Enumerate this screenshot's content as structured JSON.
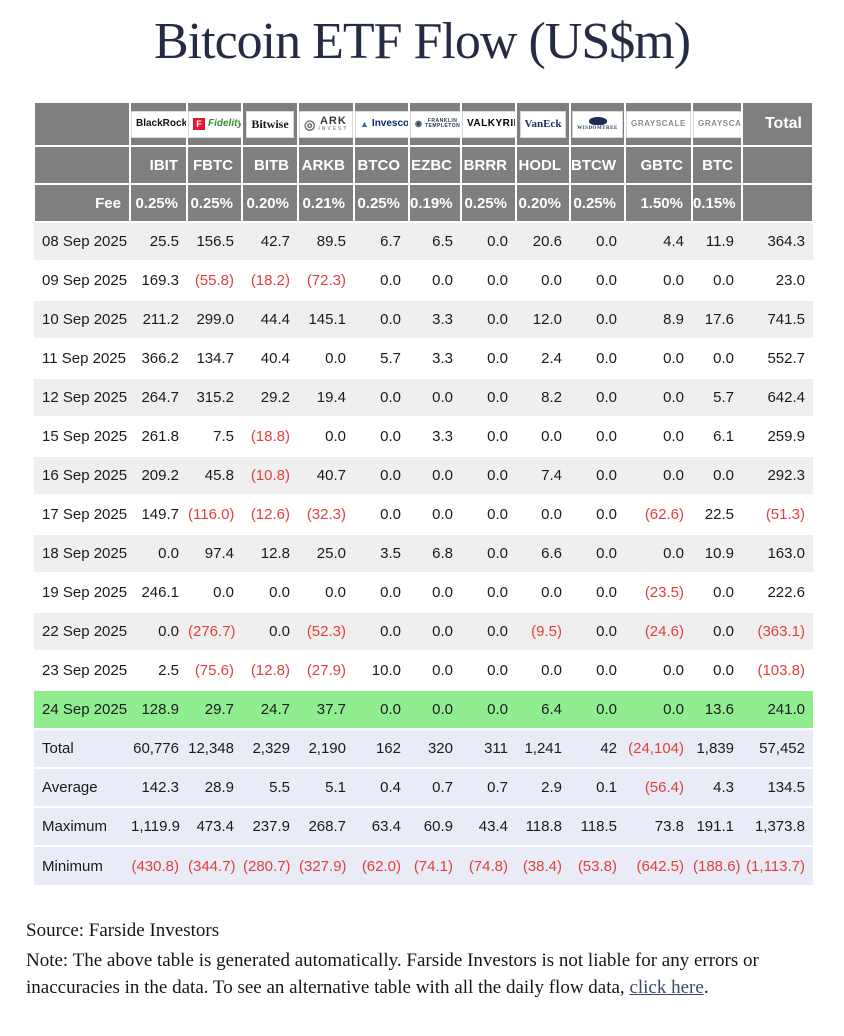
{
  "title": "Bitcoin ETF Flow (US$m)",
  "colors": {
    "header-gray": "#7f7f7f",
    "stripe-gray": "#efefef",
    "summary-lavender": "#e9ebf7",
    "highlight-green": "#90ee90",
    "neg-red": "#e2403b",
    "title-navy": "#262b44"
  },
  "table": {
    "fee_label": "Fee",
    "total_label": "Total",
    "funds": [
      {
        "name": "blackrock",
        "ticker": "IBIT",
        "fee": "0.25%",
        "logo": {
          "lines": [
            "BlackRock"
          ],
          "icon": null,
          "icon_name": null
        }
      },
      {
        "name": "fidelity",
        "ticker": "FBTC",
        "fee": "0.25%",
        "logo": {
          "lines": [
            "Fidelity"
          ],
          "icon": "F",
          "icon_name": "fidelity-f-icon"
        }
      },
      {
        "name": "bitwise",
        "ticker": "BITB",
        "fee": "0.20%",
        "logo": {
          "lines": [
            "Bitwise"
          ],
          "icon": null,
          "icon_name": null
        }
      },
      {
        "name": "ark-invest",
        "ticker": "ARKB",
        "fee": "0.21%",
        "logo": {
          "lines": [
            "ARK",
            "INVEST"
          ],
          "icon": "◎",
          "icon_name": "ark-circle-icon"
        }
      },
      {
        "name": "invesco",
        "ticker": "BTCO",
        "fee": "0.25%",
        "logo": {
          "lines": [
            "Invesco"
          ],
          "icon": "▲",
          "icon_name": "invesco-triangle-icon"
        }
      },
      {
        "name": "franklin-templeton",
        "ticker": "EZBC",
        "fee": "0.19%",
        "logo": {
          "lines": [
            "FRANKLIN",
            "TEMPLETON"
          ],
          "icon": "◉",
          "icon_name": "franklin-templeton-seal-icon"
        }
      },
      {
        "name": "valkyrie",
        "ticker": "BRRR",
        "fee": "0.25%",
        "logo": {
          "lines": [
            "VALKYRIE"
          ],
          "icon": null,
          "icon_name": null
        }
      },
      {
        "name": "vaneck",
        "ticker": "HODL",
        "fee": "0.20%",
        "logo": {
          "lines": [
            "VanEck"
          ],
          "icon": null,
          "icon_name": null
        }
      },
      {
        "name": "wisdomtree",
        "ticker": "BTCW",
        "fee": "0.25%",
        "logo": {
          "lines": [
            "WISDOMTREE"
          ],
          "icon": "",
          "icon_name": "wisdomtree-tree-icon"
        }
      },
      {
        "name": "grayscale-gbtc",
        "ticker": "GBTC",
        "fee": "1.50%",
        "logo": {
          "lines": [
            "GRAYSCALE"
          ],
          "icon": null,
          "icon_name": null
        }
      },
      {
        "name": "grayscale-btc",
        "ticker": "BTC",
        "fee": "0.15%",
        "logo": {
          "lines": [
            "GRAYSCALE"
          ],
          "icon": null,
          "icon_name": null
        }
      }
    ],
    "rows": [
      {
        "date": "08 Sep 2025",
        "values": [
          "25.5",
          "156.5",
          "42.7",
          "89.5",
          "6.7",
          "6.5",
          "0.0",
          "20.6",
          "0.0",
          "4.4",
          "11.9"
        ],
        "total": "364.3",
        "highlight": false
      },
      {
        "date": "09 Sep 2025",
        "values": [
          "169.3",
          "(55.8)",
          "(18.2)",
          "(72.3)",
          "0.0",
          "0.0",
          "0.0",
          "0.0",
          "0.0",
          "0.0",
          "0.0"
        ],
        "total": "23.0",
        "highlight": false
      },
      {
        "date": "10 Sep 2025",
        "values": [
          "211.2",
          "299.0",
          "44.4",
          "145.1",
          "0.0",
          "3.3",
          "0.0",
          "12.0",
          "0.0",
          "8.9",
          "17.6"
        ],
        "total": "741.5",
        "highlight": false
      },
      {
        "date": "11 Sep 2025",
        "values": [
          "366.2",
          "134.7",
          "40.4",
          "0.0",
          "5.7",
          "3.3",
          "0.0",
          "2.4",
          "0.0",
          "0.0",
          "0.0"
        ],
        "total": "552.7",
        "highlight": false
      },
      {
        "date": "12 Sep 2025",
        "values": [
          "264.7",
          "315.2",
          "29.2",
          "19.4",
          "0.0",
          "0.0",
          "0.0",
          "8.2",
          "0.0",
          "0.0",
          "5.7"
        ],
        "total": "642.4",
        "highlight": false
      },
      {
        "date": "15 Sep 2025",
        "values": [
          "261.8",
          "7.5",
          "(18.8)",
          "0.0",
          "0.0",
          "3.3",
          "0.0",
          "0.0",
          "0.0",
          "0.0",
          "6.1"
        ],
        "total": "259.9",
        "highlight": false
      },
      {
        "date": "16 Sep 2025",
        "values": [
          "209.2",
          "45.8",
          "(10.8)",
          "40.7",
          "0.0",
          "0.0",
          "0.0",
          "7.4",
          "0.0",
          "0.0",
          "0.0"
        ],
        "total": "292.3",
        "highlight": false
      },
      {
        "date": "17 Sep 2025",
        "values": [
          "149.7",
          "(116.0)",
          "(12.6)",
          "(32.3)",
          "0.0",
          "0.0",
          "0.0",
          "0.0",
          "0.0",
          "(62.6)",
          "22.5"
        ],
        "total": "(51.3)",
        "highlight": false
      },
      {
        "date": "18 Sep 2025",
        "values": [
          "0.0",
          "97.4",
          "12.8",
          "25.0",
          "3.5",
          "6.8",
          "0.0",
          "6.6",
          "0.0",
          "0.0",
          "10.9"
        ],
        "total": "163.0",
        "highlight": false
      },
      {
        "date": "19 Sep 2025",
        "values": [
          "246.1",
          "0.0",
          "0.0",
          "0.0",
          "0.0",
          "0.0",
          "0.0",
          "0.0",
          "0.0",
          "(23.5)",
          "0.0"
        ],
        "total": "222.6",
        "highlight": false
      },
      {
        "date": "22 Sep 2025",
        "values": [
          "0.0",
          "(276.7)",
          "0.0",
          "(52.3)",
          "0.0",
          "0.0",
          "0.0",
          "(9.5)",
          "0.0",
          "(24.6)",
          "0.0"
        ],
        "total": "(363.1)",
        "highlight": false
      },
      {
        "date": "23 Sep 2025",
        "values": [
          "2.5",
          "(75.6)",
          "(12.8)",
          "(27.9)",
          "10.0",
          "0.0",
          "0.0",
          "0.0",
          "0.0",
          "0.0",
          "0.0"
        ],
        "total": "(103.8)",
        "highlight": false
      },
      {
        "date": "24 Sep 2025",
        "values": [
          "128.9",
          "29.7",
          "24.7",
          "37.7",
          "0.0",
          "0.0",
          "0.0",
          "6.4",
          "0.0",
          "0.0",
          "13.6"
        ],
        "total": "241.0",
        "highlight": true
      }
    ],
    "summary": [
      {
        "label": "Total",
        "values": [
          "60,776",
          "12,348",
          "2,329",
          "2,190",
          "162",
          "320",
          "311",
          "1,241",
          "42",
          "(24,104)",
          "1,839"
        ],
        "total": "57,452"
      },
      {
        "label": "Average",
        "values": [
          "142.3",
          "28.9",
          "5.5",
          "5.1",
          "0.4",
          "0.7",
          "0.7",
          "2.9",
          "0.1",
          "(56.4)",
          "4.3"
        ],
        "total": "134.5"
      },
      {
        "label": "Maximum",
        "values": [
          "1,119.9",
          "473.4",
          "237.9",
          "268.7",
          "63.4",
          "60.9",
          "43.4",
          "118.8",
          "118.5",
          "73.8",
          "191.1"
        ],
        "total": "1,373.8"
      },
      {
        "label": "Minimum",
        "values": [
          "(430.8)",
          "(344.7)",
          "(280.7)",
          "(327.9)",
          "(62.0)",
          "(74.1)",
          "(74.8)",
          "(38.4)",
          "(53.8)",
          "(642.5)",
          "(188.6)"
        ],
        "total": "(1,113.7)"
      }
    ]
  },
  "footer": {
    "source": "Source: Farside Investors",
    "note_before_link": "Note: The above table is generated automatically. Farside Investors is not liable for any errors or inaccuracies in the data. To see an alternative table with all the daily flow data, ",
    "link_text": "click here",
    "note_after_link": "."
  }
}
